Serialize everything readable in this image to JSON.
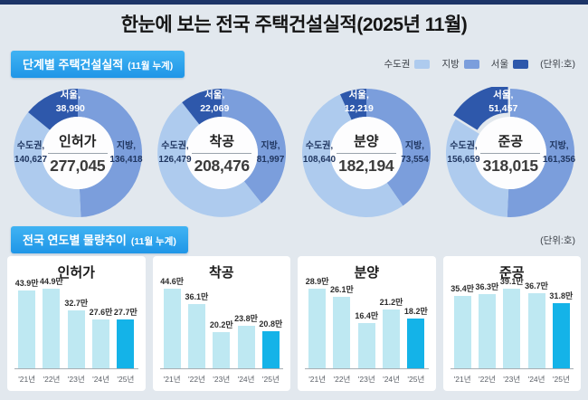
{
  "page": {
    "title": "한눈에 보는 전국 주택건설실적(2025년 11월)"
  },
  "section1": {
    "badge_label": "단계별 주택건설실적",
    "badge_note": "(11월 누계)",
    "unit_label": "(단위:호)",
    "legend": [
      {
        "label": "수도권",
        "color": "#aecbee"
      },
      {
        "label": "지방",
        "color": "#7b9edc"
      },
      {
        "label": "서울",
        "color": "#2e58ab"
      }
    ]
  },
  "section2": {
    "badge_label": "전국 연도별 물량추이",
    "badge_note": "(11월 누계)",
    "unit_label": "(단위:호)"
  },
  "colors": {
    "background": "#e2e8ee",
    "top_bar": "#1c3467",
    "badge_blue": "#29a4ee",
    "sudogwon": "#aecbee",
    "jibang": "#7b9edc",
    "seoul": "#2e58ab",
    "bar": "#bee8f2",
    "bar_highlight": "#14b3e8"
  },
  "chart_data": [
    {
      "type": "pie",
      "title": "인허가",
      "total": 277045,
      "slices": [
        {
          "label": "지방",
          "value": 136418
        },
        {
          "label": "수도권",
          "value": 140627
        },
        {
          "label": "서울",
          "value": 38990,
          "subset_of": "수도권"
        }
      ],
      "exploded_seoul": false,
      "unit": "호"
    },
    {
      "type": "pie",
      "title": "착공",
      "total": 208476,
      "slices": [
        {
          "label": "지방",
          "value": 81997
        },
        {
          "label": "수도권",
          "value": 126479
        },
        {
          "label": "서울",
          "value": 22069,
          "subset_of": "수도권"
        }
      ],
      "exploded_seoul": false,
      "unit": "호"
    },
    {
      "type": "pie",
      "title": "분양",
      "total": 182194,
      "slices": [
        {
          "label": "지방",
          "value": 73554
        },
        {
          "label": "수도권",
          "value": 108640
        },
        {
          "label": "서울",
          "value": 12219,
          "subset_of": "수도권"
        }
      ],
      "exploded_seoul": false,
      "unit": "호"
    },
    {
      "type": "pie",
      "title": "준공",
      "total": 318015,
      "slices": [
        {
          "label": "지방",
          "value": 161356
        },
        {
          "label": "수도권",
          "value": 156659
        },
        {
          "label": "서울",
          "value": 51457,
          "subset_of": "수도권"
        }
      ],
      "exploded_seoul": true,
      "unit": "호"
    },
    {
      "type": "bar",
      "title": "인허가",
      "categories": [
        "'21년",
        "'22년",
        "'23년",
        "'24년",
        "'25년"
      ],
      "values": [
        43.9,
        44.9,
        32.7,
        27.6,
        27.7
      ],
      "value_unit": "만",
      "highlight_index": 4
    },
    {
      "type": "bar",
      "title": "착공",
      "categories": [
        "'21년",
        "'22년",
        "'23년",
        "'24년",
        "'25년"
      ],
      "values": [
        44.6,
        36.1,
        20.2,
        23.8,
        20.8
      ],
      "value_unit": "만",
      "highlight_index": 4
    },
    {
      "type": "bar",
      "title": "분양",
      "categories": [
        "'21년",
        "'22년",
        "'23년",
        "'24년",
        "'25년"
      ],
      "values": [
        28.9,
        26.1,
        16.4,
        21.2,
        18.2
      ],
      "value_unit": "만",
      "highlight_index": 4
    },
    {
      "type": "bar",
      "title": "준공",
      "categories": [
        "'21년",
        "'22년",
        "'23년",
        "'24년",
        "'25년"
      ],
      "values": [
        35.4,
        36.3,
        39.1,
        36.7,
        31.8
      ],
      "value_unit": "만",
      "highlight_index": 4
    }
  ]
}
